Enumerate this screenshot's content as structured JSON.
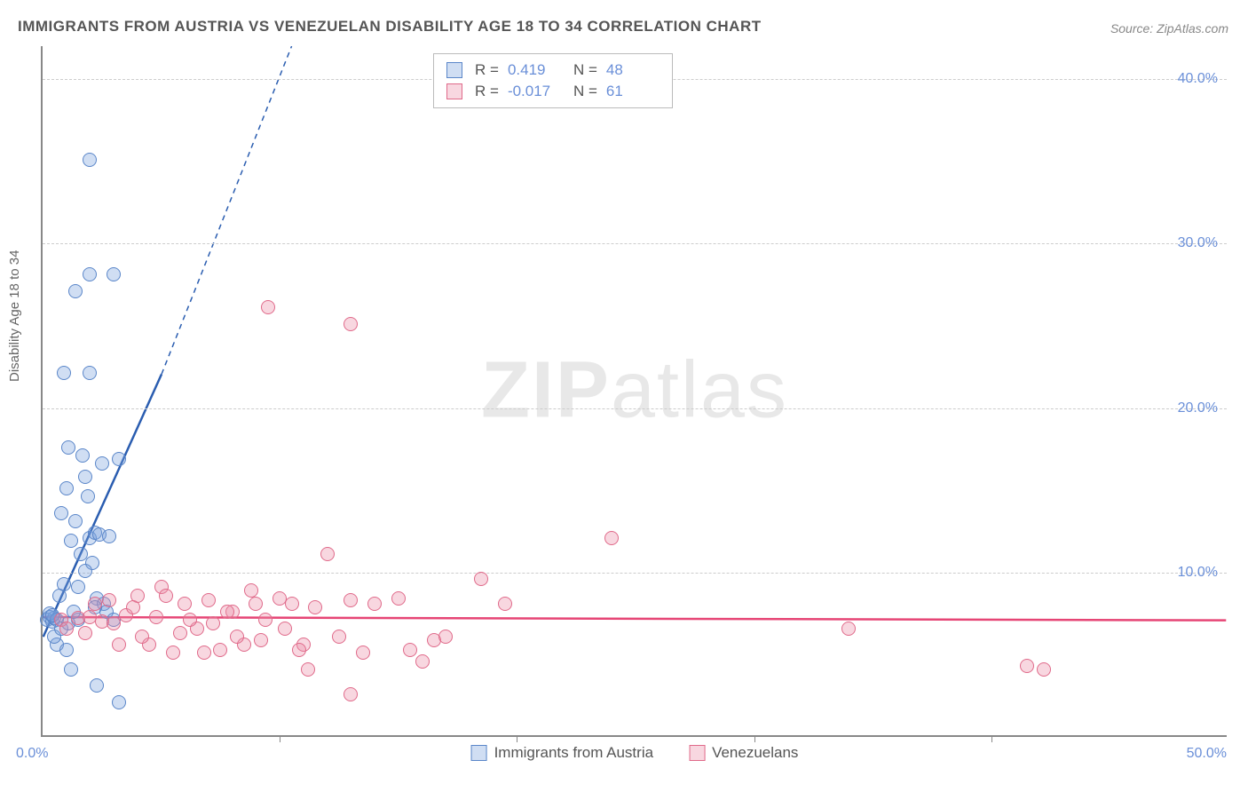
{
  "title": "IMMIGRANTS FROM AUSTRIA VS VENEZUELAN DISABILITY AGE 18 TO 34 CORRELATION CHART",
  "source": "Source: ZipAtlas.com",
  "y_axis_label": "Disability Age 18 to 34",
  "watermark_zip": "ZIP",
  "watermark_atlas": "atlas",
  "chart": {
    "type": "scatter",
    "xlim": [
      0,
      50
    ],
    "ylim": [
      0,
      42
    ],
    "y_ticks": [
      10,
      20,
      30,
      40
    ],
    "y_tick_labels": [
      "10.0%",
      "20.0%",
      "30.0%",
      "40.0%"
    ],
    "x_ticks": [
      10,
      20,
      30,
      40
    ],
    "x_origin_label": "0.0%",
    "x_end_label": "50.0%",
    "grid_color": "#cccccc",
    "background_color": "#ffffff",
    "series": [
      {
        "name": "Immigrants from Austria",
        "fill": "rgba(120,160,220,0.35)",
        "stroke": "#5a86c9",
        "r_label": "R =",
        "r_value": "0.419",
        "n_label": "N =",
        "n_value": "48",
        "trend": {
          "x1": 0,
          "y1": 6.0,
          "x2_solid": 5.0,
          "y2_solid": 22.0,
          "x2_dash": 10.5,
          "y2_dash": 42.0,
          "color": "#2a5db0",
          "width": 2.5
        },
        "points": [
          [
            0.2,
            7.0
          ],
          [
            0.3,
            7.2
          ],
          [
            0.4,
            6.9
          ],
          [
            0.5,
            7.1
          ],
          [
            0.3,
            7.4
          ],
          [
            0.6,
            7.0
          ],
          [
            0.4,
            7.3
          ],
          [
            0.6,
            5.5
          ],
          [
            1.0,
            5.2
          ],
          [
            1.2,
            4.0
          ],
          [
            1.5,
            7.0
          ],
          [
            1.6,
            11.0
          ],
          [
            2.0,
            12.0
          ],
          [
            2.2,
            12.3
          ],
          [
            2.4,
            12.2
          ],
          [
            2.1,
            10.5
          ],
          [
            2.3,
            8.3
          ],
          [
            2.6,
            8.0
          ],
          [
            2.8,
            12.1
          ],
          [
            0.8,
            13.5
          ],
          [
            1.0,
            15.0
          ],
          [
            1.8,
            15.7
          ],
          [
            3.2,
            16.8
          ],
          [
            1.1,
            17.5
          ],
          [
            0.9,
            22.0
          ],
          [
            2.0,
            22.0
          ],
          [
            1.4,
            27.0
          ],
          [
            2.0,
            28.0
          ],
          [
            3.0,
            28.0
          ],
          [
            2.0,
            35.0
          ],
          [
            2.3,
            3.0
          ],
          [
            3.2,
            2.0
          ],
          [
            0.5,
            6.0
          ],
          [
            0.8,
            6.5
          ],
          [
            1.1,
            6.8
          ],
          [
            1.3,
            7.5
          ],
          [
            1.5,
            9.0
          ],
          [
            1.8,
            10.0
          ],
          [
            2.5,
            16.5
          ],
          [
            2.7,
            7.5
          ],
          [
            3.0,
            7.0
          ],
          [
            1.9,
            14.5
          ],
          [
            1.2,
            11.8
          ],
          [
            0.7,
            8.5
          ],
          [
            0.9,
            9.2
          ],
          [
            1.4,
            13.0
          ],
          [
            1.7,
            17.0
          ],
          [
            2.2,
            7.8
          ]
        ]
      },
      {
        "name": "Venezuelans",
        "fill": "rgba(235,140,165,0.35)",
        "stroke": "#e06a8a",
        "r_label": "R =",
        "r_value": "-0.017",
        "n_label": "N =",
        "n_value": "61",
        "trend": {
          "x1": 0,
          "y1": 7.2,
          "x2_solid": 50,
          "y2_solid": 7.0,
          "color": "#e64575",
          "width": 2.5
        },
        "points": [
          [
            0.8,
            7.0
          ],
          [
            1.5,
            7.1
          ],
          [
            2.0,
            7.2
          ],
          [
            2.5,
            6.9
          ],
          [
            3.0,
            6.8
          ],
          [
            3.5,
            7.3
          ],
          [
            4.0,
            8.5
          ],
          [
            4.5,
            5.5
          ],
          [
            5.0,
            9.0
          ],
          [
            5.5,
            5.0
          ],
          [
            6.0,
            8.0
          ],
          [
            6.5,
            6.5
          ],
          [
            7.0,
            8.2
          ],
          [
            7.5,
            5.2
          ],
          [
            8.0,
            7.5
          ],
          [
            8.5,
            5.5
          ],
          [
            9.0,
            8.0
          ],
          [
            9.2,
            5.8
          ],
          [
            9.5,
            26.0
          ],
          [
            10.0,
            8.3
          ],
          [
            10.5,
            8.0
          ],
          [
            11.0,
            5.5
          ],
          [
            11.2,
            4.0
          ],
          [
            12.0,
            11.0
          ],
          [
            13.0,
            8.2
          ],
          [
            13.0,
            25.0
          ],
          [
            13.5,
            5.0
          ],
          [
            14.0,
            8.0
          ],
          [
            15.0,
            8.3
          ],
          [
            15.5,
            5.2
          ],
          [
            16.0,
            4.5
          ],
          [
            16.5,
            5.8
          ],
          [
            17.0,
            6.0
          ],
          [
            13.0,
            2.5
          ],
          [
            18.5,
            9.5
          ],
          [
            19.5,
            8.0
          ],
          [
            24.0,
            12.0
          ],
          [
            34.0,
            6.5
          ],
          [
            41.5,
            4.2
          ],
          [
            42.2,
            4.0
          ],
          [
            1.0,
            6.5
          ],
          [
            1.8,
            6.2
          ],
          [
            2.2,
            8.0
          ],
          [
            2.8,
            8.2
          ],
          [
            3.2,
            5.5
          ],
          [
            3.8,
            7.8
          ],
          [
            4.2,
            6.0
          ],
          [
            4.8,
            7.2
          ],
          [
            5.2,
            8.5
          ],
          [
            5.8,
            6.2
          ],
          [
            6.2,
            7.0
          ],
          [
            6.8,
            5.0
          ],
          [
            7.2,
            6.8
          ],
          [
            7.8,
            7.5
          ],
          [
            8.2,
            6.0
          ],
          [
            8.8,
            8.8
          ],
          [
            9.4,
            7.0
          ],
          [
            10.2,
            6.5
          ],
          [
            10.8,
            5.2
          ],
          [
            11.5,
            7.8
          ],
          [
            12.5,
            6.0
          ]
        ]
      }
    ]
  },
  "legend": {
    "series1_label": "Immigrants from Austria",
    "series2_label": "Venezuelans"
  }
}
